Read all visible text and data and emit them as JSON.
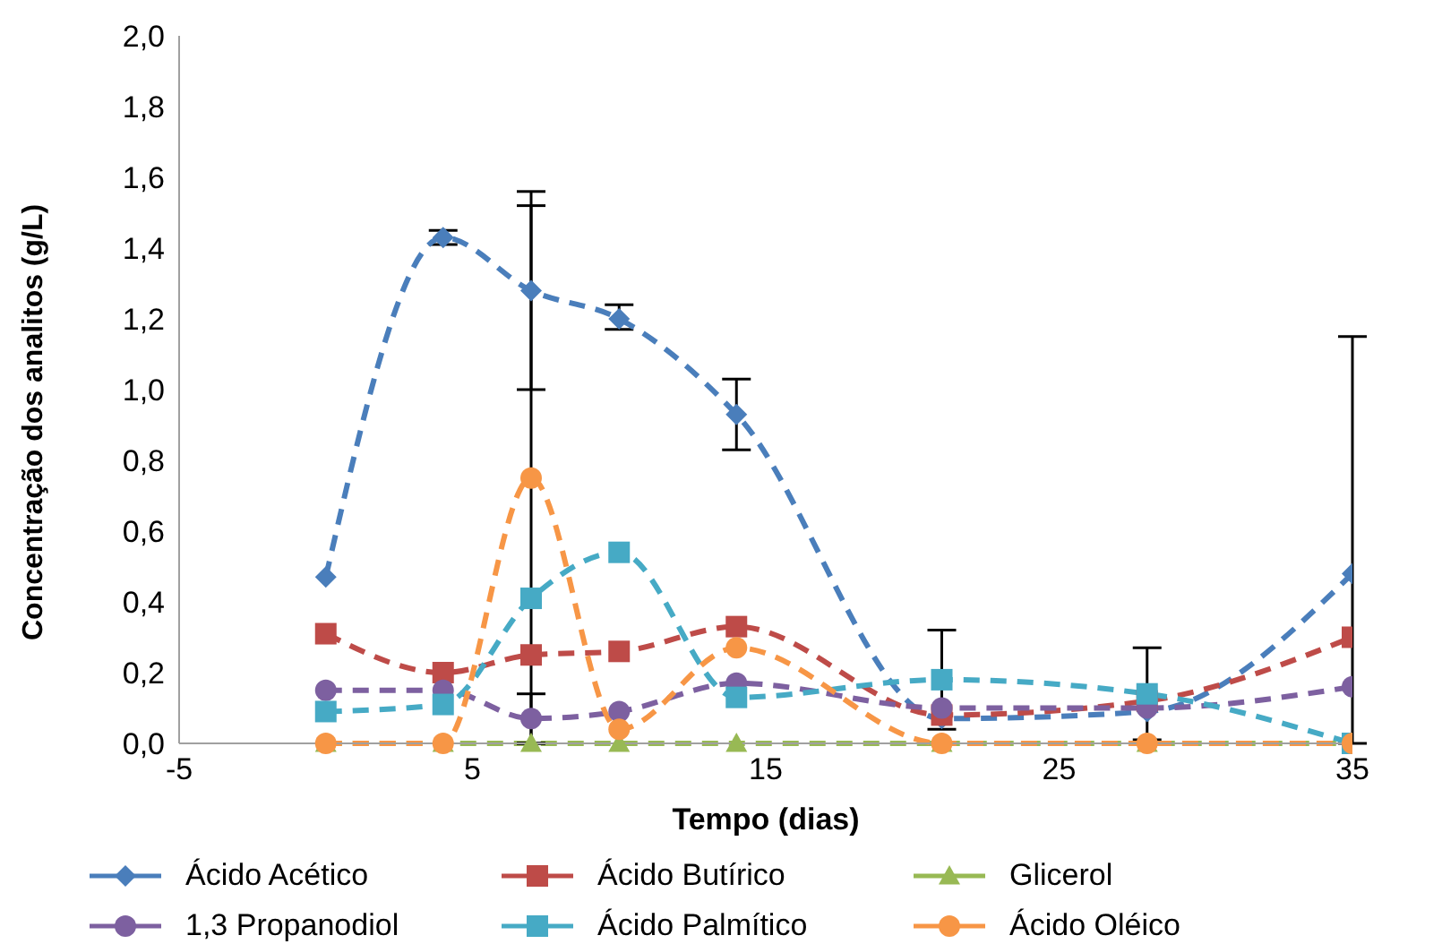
{
  "chart_data": {
    "type": "line",
    "xlabel": "Tempo (dias)",
    "ylabel": "Concentração dos analitos (g/L)",
    "x": [
      0,
      4,
      7,
      10,
      14,
      21,
      28,
      35
    ],
    "xlim": [
      -5,
      35
    ],
    "xticks": [
      -5,
      5,
      15,
      25,
      35
    ],
    "ylim": [
      0,
      2
    ],
    "yticks": [
      {
        "value": 0,
        "label": "0,0"
      },
      {
        "value": 0.2,
        "label": "0,2"
      },
      {
        "value": 0.4,
        "label": "0,4"
      },
      {
        "value": 0.6,
        "label": "0,6"
      },
      {
        "value": 0.8,
        "label": "0,8"
      },
      {
        "value": 1.0,
        "label": "1,0"
      },
      {
        "value": 1.2,
        "label": "1,2"
      },
      {
        "value": 1.4,
        "label": "1,4"
      },
      {
        "value": 1.6,
        "label": "1,6"
      },
      {
        "value": 1.8,
        "label": "1,8"
      },
      {
        "value": 2.0,
        "label": "2,0"
      }
    ],
    "grid": false,
    "legend": "bottom",
    "line_style": "dashed",
    "series": [
      {
        "name": "Ácido Acético",
        "color": "#4a7ebb",
        "marker": "diamond",
        "values": [
          0.47,
          1.43,
          1.28,
          1.2,
          0.93,
          0.07,
          0.09,
          0.48
        ],
        "errors": [
          null,
          [
            1.41,
            1.45
          ],
          [
            1.0,
            1.56
          ],
          [
            1.17,
            1.24
          ],
          [
            0.83,
            1.03
          ],
          null,
          null,
          [
            0,
            1.15
          ]
        ]
      },
      {
        "name": "Ácido Butírico",
        "color": "#be4b48",
        "marker": "square",
        "values": [
          0.31,
          0.2,
          0.25,
          0.26,
          0.33,
          0.08,
          0.12,
          0.3
        ]
      },
      {
        "name": "Glicerol",
        "color": "#98b954",
        "marker": "triangle",
        "values": [
          0,
          0,
          0,
          0,
          0,
          0,
          0,
          0
        ]
      },
      {
        "name": "1,3 Propanodiol",
        "color": "#7d60a0",
        "marker": "circle",
        "values": [
          0.15,
          0.15,
          0.07,
          0.09,
          0.17,
          0.1,
          0.1,
          0.16
        ],
        "errors": [
          null,
          null,
          [
            0,
            0.14
          ],
          null,
          null,
          null,
          null,
          null
        ]
      },
      {
        "name": "Ácido Palmítico",
        "color": "#46aac5",
        "marker": "square",
        "values": [
          0.09,
          0.11,
          0.41,
          0.54,
          0.13,
          0.18,
          0.14,
          0
        ],
        "errors": [
          null,
          null,
          null,
          null,
          null,
          [
            0.04,
            0.32
          ],
          0.13,
          null
        ]
      },
      {
        "name": "Ácido Oléico",
        "color": "#f79646",
        "marker": "circle",
        "values": [
          0,
          0,
          0.75,
          0.04,
          0.27,
          0,
          0,
          0
        ],
        "errors": [
          null,
          null,
          [
            0,
            1.52
          ],
          null,
          null,
          null,
          null,
          null
        ]
      }
    ]
  }
}
